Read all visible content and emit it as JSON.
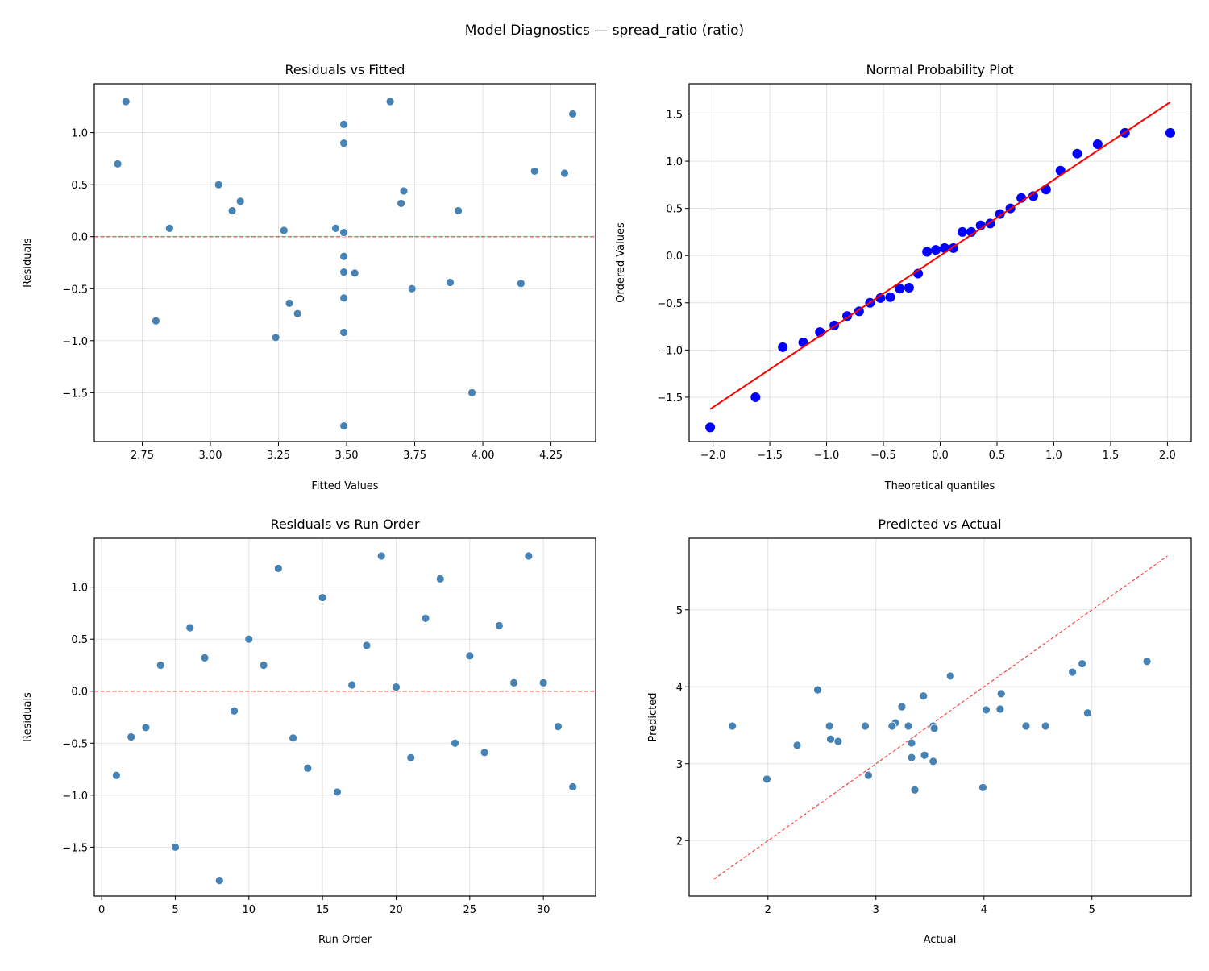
{
  "title": "Model Diagnostics — spread_ratio (ratio)",
  "colors": {
    "points": "#4682b4",
    "point_edge": "#ffffff",
    "qq_points": "#0000ff",
    "reference_line": "#ff0000",
    "grid": "#b0b0b0"
  },
  "chart_data": [
    {
      "type": "scatter",
      "title": "Residuals vs Fitted",
      "xlabel": "Fitted Values",
      "ylabel": "Residuals",
      "xlim": [
        2.574,
        4.414
      ],
      "ylim": [
        -1.97,
        1.47
      ],
      "xticks": [
        2.75,
        3.0,
        3.25,
        3.5,
        3.75,
        4.0,
        4.25
      ],
      "xtick_decimals": 2,
      "yticks": [
        -1.5,
        -1.0,
        -0.5,
        0.0,
        0.5,
        1.0
      ],
      "ytick_decimals": 1,
      "grid": true,
      "reference": {
        "type": "hline",
        "y": 0,
        "style": "dashed",
        "color": "#ff0000"
      },
      "x_field": "fitted",
      "y_field": "residual"
    },
    {
      "type": "scatter",
      "title": "Normal Probability Plot",
      "xlabel": "Theoretical quantiles",
      "ylabel": "Ordered Values",
      "xlim": [
        -2.21,
        2.21
      ],
      "ylim": [
        -1.97,
        1.82
      ],
      "xticks": [
        -2.0,
        -1.5,
        -1.0,
        -0.5,
        0.0,
        0.5,
        1.0,
        1.5,
        2.0
      ],
      "xtick_decimals": 1,
      "yticks": [
        -1.5,
        -1.0,
        -0.5,
        0.0,
        0.5,
        1.0,
        1.5
      ],
      "ytick_decimals": 1,
      "grid": true,
      "theoretical_quantiles": [
        -2.025,
        -1.626,
        -1.386,
        -1.206,
        -1.059,
        -0.932,
        -0.819,
        -0.714,
        -0.618,
        -0.526,
        -0.44,
        -0.356,
        -0.274,
        -0.195,
        -0.116,
        -0.039,
        0.039,
        0.116,
        0.195,
        0.274,
        0.356,
        0.44,
        0.526,
        0.618,
        0.714,
        0.819,
        0.932,
        1.059,
        1.206,
        1.386,
        1.626,
        2.025
      ],
      "ordered_values": [
        -1.82,
        -1.5,
        -0.97,
        -0.92,
        -0.81,
        -0.74,
        -0.64,
        -0.59,
        -0.5,
        -0.45,
        -0.44,
        -0.35,
        -0.34,
        -0.19,
        0.04,
        0.06,
        0.08,
        0.08,
        0.25,
        0.25,
        0.32,
        0.34,
        0.44,
        0.5,
        0.61,
        0.63,
        0.7,
        0.9,
        1.08,
        1.18,
        1.3,
        1.3
      ],
      "fit_line": {
        "slope": 0.803,
        "intercept": 0.0,
        "color": "#ff0000",
        "style": "solid"
      }
    },
    {
      "type": "scatter",
      "title": "Residuals vs Run Order",
      "xlabel": "Run Order",
      "ylabel": "Residuals",
      "xlim": [
        -0.5,
        33.55
      ],
      "ylim": [
        -1.97,
        1.47
      ],
      "xticks": [
        0,
        5,
        10,
        15,
        20,
        25,
        30
      ],
      "xtick_decimals": 0,
      "yticks": [
        -1.5,
        -1.0,
        -0.5,
        0.0,
        0.5,
        1.0
      ],
      "ytick_decimals": 1,
      "grid": true,
      "reference": {
        "type": "hline",
        "y": 0,
        "style": "dashed",
        "color": "#ff0000"
      },
      "x_field": "run",
      "y_field": "residual"
    },
    {
      "type": "scatter",
      "title": "Predicted vs Actual",
      "xlabel": "Actual",
      "ylabel": "Predicted",
      "xlim": [
        1.27,
        5.92
      ],
      "ylim": [
        1.28,
        5.93
      ],
      "xticks": [
        2,
        3,
        4,
        5
      ],
      "xtick_decimals": 0,
      "yticks": [
        2,
        3,
        4,
        5
      ],
      "ytick_decimals": 0,
      "grid": true,
      "reference": {
        "type": "diagonal",
        "from": 1.5,
        "to": 5.7,
        "style": "dashed",
        "color": "#ff0000"
      },
      "x_field": "actual",
      "y_field": "fitted"
    }
  ],
  "runs": [
    {
      "run": 1,
      "fitted": 2.8,
      "residual": -0.81,
      "actual": 1.99
    },
    {
      "run": 2,
      "fitted": 3.88,
      "residual": -0.44,
      "actual": 3.44
    },
    {
      "run": 3,
      "fitted": 3.53,
      "residual": -0.35,
      "actual": 3.18
    },
    {
      "run": 4,
      "fitted": 3.08,
      "residual": 0.25,
      "actual": 3.33
    },
    {
      "run": 5,
      "fitted": 3.96,
      "residual": -1.5,
      "actual": 2.46
    },
    {
      "run": 6,
      "fitted": 4.3,
      "residual": 0.61,
      "actual": 4.91
    },
    {
      "run": 7,
      "fitted": 3.7,
      "residual": 0.32,
      "actual": 4.02
    },
    {
      "run": 8,
      "fitted": 3.49,
      "residual": -1.82,
      "actual": 1.67
    },
    {
      "run": 9,
      "fitted": 3.49,
      "residual": -0.19,
      "actual": 3.3
    },
    {
      "run": 10,
      "fitted": 3.03,
      "residual": 0.5,
      "actual": 3.53
    },
    {
      "run": 11,
      "fitted": 3.91,
      "residual": 0.25,
      "actual": 4.16
    },
    {
      "run": 12,
      "fitted": 4.33,
      "residual": 1.18,
      "actual": 5.51
    },
    {
      "run": 13,
      "fitted": 4.14,
      "residual": -0.45,
      "actual": 3.69
    },
    {
      "run": 14,
      "fitted": 3.32,
      "residual": -0.74,
      "actual": 2.58
    },
    {
      "run": 15,
      "fitted": 3.49,
      "residual": 0.9,
      "actual": 4.39
    },
    {
      "run": 16,
      "fitted": 3.24,
      "residual": -0.97,
      "actual": 2.27
    },
    {
      "run": 17,
      "fitted": 3.27,
      "residual": 0.06,
      "actual": 3.33
    },
    {
      "run": 18,
      "fitted": 3.71,
      "residual": 0.44,
      "actual": 4.15
    },
    {
      "run": 19,
      "fitted": 2.69,
      "residual": 1.3,
      "actual": 3.99
    },
    {
      "run": 20,
      "fitted": 3.49,
      "residual": 0.04,
      "actual": 3.53
    },
    {
      "run": 21,
      "fitted": 3.29,
      "residual": -0.64,
      "actual": 2.65
    },
    {
      "run": 22,
      "fitted": 2.66,
      "residual": 0.7,
      "actual": 3.36
    },
    {
      "run": 23,
      "fitted": 3.49,
      "residual": 1.08,
      "actual": 4.57
    },
    {
      "run": 24,
      "fitted": 3.74,
      "residual": -0.5,
      "actual": 3.24
    },
    {
      "run": 25,
      "fitted": 3.11,
      "residual": 0.34,
      "actual": 3.45
    },
    {
      "run": 26,
      "fitted": 3.49,
      "residual": -0.59,
      "actual": 2.9
    },
    {
      "run": 27,
      "fitted": 4.19,
      "residual": 0.63,
      "actual": 4.82
    },
    {
      "run": 28,
      "fitted": 2.85,
      "residual": 0.08,
      "actual": 2.93
    },
    {
      "run": 29,
      "fitted": 3.66,
      "residual": 1.3,
      "actual": 4.96
    },
    {
      "run": 30,
      "fitted": 3.46,
      "residual": 0.08,
      "actual": 3.54
    },
    {
      "run": 31,
      "fitted": 3.49,
      "residual": -0.34,
      "actual": 3.15
    },
    {
      "run": 32,
      "fitted": 3.49,
      "residual": -0.92,
      "actual": 2.57
    }
  ]
}
